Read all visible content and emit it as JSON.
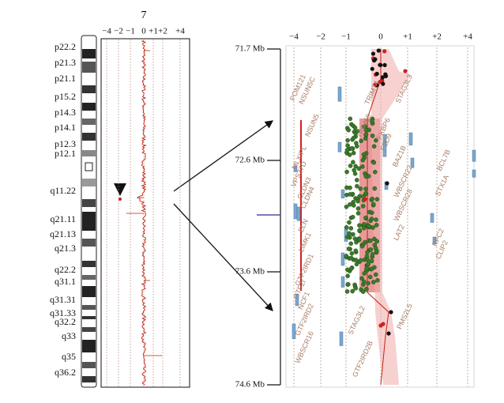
{
  "left_panel": {
    "title": "7",
    "x_ticks": [
      "−4",
      "−2",
      "−1",
      "0",
      "+1",
      "+2",
      "+4"
    ],
    "bands": [
      "p22.2",
      "p21.3",
      "p21.1",
      "p15.2",
      "p14.3",
      "p14.1",
      "p12.3",
      "p12.1",
      "q11.22",
      "q21.11",
      "q21.13",
      "q21.3",
      "q22.2",
      "q31.1",
      "q31.31",
      "q31.33",
      "q32.2",
      "q33",
      "q35",
      "q36.2"
    ]
  },
  "right_panel": {
    "x_ticks": [
      "−4",
      "−2",
      "−1",
      "0",
      "+1",
      "+2",
      "+4"
    ],
    "y_labels": [
      "71.7 Mb",
      "72.6 Mb",
      "73.6 Mb",
      "74.6 Mb"
    ],
    "genes": [
      "POM121",
      "NSUN5C",
      "TRIM74",
      "STAG3L3",
      "NSUN5",
      "TRIM50",
      "FKBP6",
      "FZD9",
      "BAZ1B",
      "BCL7B",
      "MLXIPL",
      "VPS37D",
      "CLDN3",
      "CLDN4",
      "WBSCR22",
      "WBSCR28",
      "STX1A",
      "ELN",
      "LIMK1",
      "LAT2",
      "RFC2",
      "CLIP2",
      "GTF2IRD1",
      "GTF2I",
      "NCF1",
      "GTF2IRD2",
      "STAG3L2",
      "PMS2L5",
      "WBSCR16",
      "GTF2IRD2B"
    ]
  }
}
